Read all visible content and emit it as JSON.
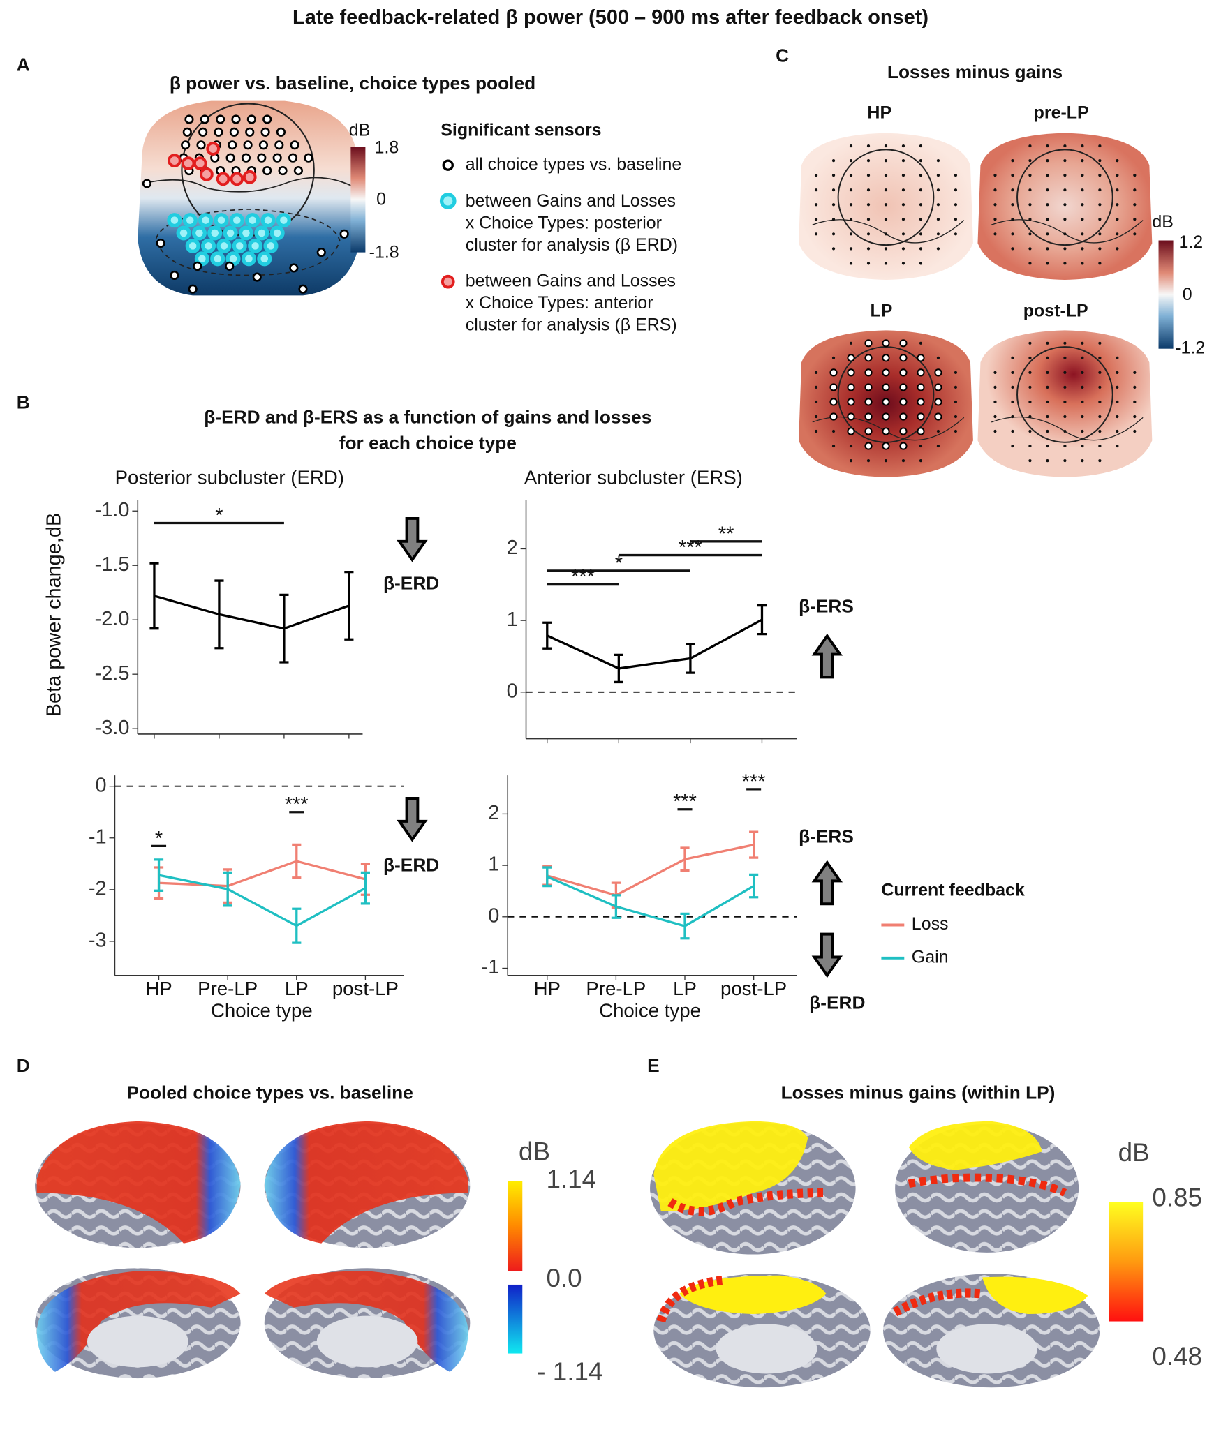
{
  "title": "Late feedback-related β power (500 – 900 ms after feedback onset)",
  "panel_a": {
    "label": "A",
    "title": "β power vs. baseline, choice types pooled",
    "colorbar": {
      "unit": "dB",
      "ticks": [
        "1.8",
        "0",
        "-1.8"
      ]
    },
    "legend_title": "Significant sensors",
    "legend": [
      [
        "all choice types vs. baseline"
      ],
      [
        "between Gains and Losses",
        "x Choice Types: posterior",
        "cluster for analysis (β ERD)"
      ],
      [
        "between Gains and Losses",
        "x Choice Types: anterior",
        "cluster for analysis (β ERS)"
      ]
    ]
  },
  "panel_b": {
    "label": "B",
    "title": [
      "β-ERD and β-ERS as a function of gains and losses",
      "for each choice type"
    ],
    "side_labels": [
      "β-ERD",
      "β-ERS",
      "β-ERD",
      "β-ERS",
      "β-ERD"
    ]
  },
  "panel_c": {
    "label": "C",
    "title": "Losses minus gains",
    "maps": [
      "HP",
      "pre-LP",
      "LP",
      "post-LP"
    ],
    "colorbar": {
      "unit": "dB",
      "ticks": [
        "1.2",
        "0",
        "-1.2"
      ]
    }
  },
  "panel_d": {
    "label": "D",
    "title": "Pooled choice types vs. baseline",
    "colorbar": {
      "unit": "dB",
      "ticks": [
        "1.14",
        "0.0",
        "- 1.14"
      ]
    }
  },
  "panel_e": {
    "label": "E",
    "title": "Losses minus gains (within LP)",
    "colorbar": {
      "unit": "dB",
      "ticks": [
        "0.85",
        "0.48"
      ]
    }
  },
  "chart_data": [
    {
      "type": "line",
      "subtitle": "Posterior subcluster (ERD)",
      "y_label": "Beta power change,dB",
      "categories": [
        null,
        null,
        null,
        null
      ],
      "values": [
        -1.78,
        -1.95,
        -2.08,
        -1.87
      ],
      "errors": [
        0.3,
        0.31,
        0.31,
        0.31
      ],
      "color": "#000000",
      "ylim": [
        -3.05,
        -0.9
      ],
      "yticks": [
        {
          "value": -1,
          "label": "-1.0"
        },
        {
          "value": -1.5,
          "label": "-1.5"
        },
        {
          "value": -2,
          "label": "-2.0"
        },
        {
          "value": -2.5,
          "label": "-2.5"
        },
        {
          "value": -3,
          "label": "-3.0"
        }
      ],
      "annotations": [
        {
          "text": "*",
          "between": [
            0,
            2
          ]
        }
      ]
    },
    {
      "type": "line",
      "subtitle": "Anterior subcluster (ERS)",
      "categories": [
        null,
        null,
        null,
        null
      ],
      "values": [
        0.79,
        0.33,
        0.47,
        1.01
      ],
      "errors": [
        0.18,
        0.19,
        0.2,
        0.2
      ],
      "color": "#000000",
      "ylim": [
        -0.65,
        2.68
      ],
      "yticks": [
        0,
        1,
        2
      ],
      "hline": 0,
      "annotations": [
        {
          "text": "***",
          "between": [
            0,
            1
          ]
        },
        {
          "text": "*",
          "between": [
            0,
            2
          ]
        },
        {
          "text": "***",
          "between": [
            1,
            3
          ]
        },
        {
          "text": "**",
          "between": [
            2,
            3
          ]
        }
      ]
    },
    {
      "type": "line",
      "x_label": "Choice type",
      "categories": [
        "HP",
        "Pre-LP",
        "LP",
        "post-LP"
      ],
      "series": [
        {
          "name": "Loss",
          "color": "#f07f72",
          "values": [
            -1.87,
            -1.93,
            -1.45,
            -1.8
          ],
          "errors": [
            0.3,
            0.32,
            0.32,
            0.3
          ]
        },
        {
          "name": "Gain",
          "color": "#1fbfc2",
          "values": [
            -1.72,
            -1.99,
            -2.7,
            -1.97
          ],
          "errors": [
            0.3,
            0.32,
            0.33,
            0.3
          ]
        }
      ],
      "ylim": [
        -3.66,
        0.21
      ],
      "yticks": [
        0,
        -1,
        -2,
        -3
      ],
      "hline": 0,
      "annotations": [
        {
          "text": "*",
          "between": [
            0,
            0
          ]
        },
        {
          "text": "***",
          "between": [
            2,
            2
          ]
        }
      ]
    },
    {
      "type": "line",
      "x_label": "Choice type",
      "legend_title": "Current feedback",
      "categories": [
        "HP",
        "Pre-LP",
        "LP",
        "post-LP"
      ],
      "series": [
        {
          "name": "Loss",
          "color": "#f07f72",
          "values": [
            0.8,
            0.42,
            1.12,
            1.4
          ],
          "errors": [
            0.18,
            0.24,
            0.22,
            0.25
          ]
        },
        {
          "name": "Gain",
          "color": "#1fbfc2",
          "values": [
            0.78,
            0.2,
            -0.18,
            0.6
          ],
          "errors": [
            0.18,
            0.22,
            0.24,
            0.22
          ]
        }
      ],
      "ylim": [
        -1.14,
        2.75
      ],
      "yticks": [
        -1,
        0,
        1,
        2
      ],
      "hline": 0,
      "annotations": [
        {
          "text": "***",
          "between": [
            2,
            2
          ]
        },
        {
          "text": "***",
          "between": [
            3,
            3
          ]
        }
      ]
    }
  ]
}
